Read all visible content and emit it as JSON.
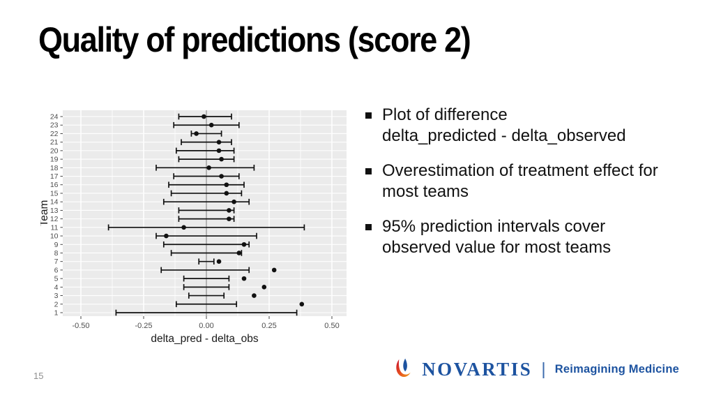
{
  "slide": {
    "title": "Quality of predictions (score 2)",
    "page_number": "15"
  },
  "bullets": [
    "Plot of difference\ndelta_predicted - delta_observed",
    "Overestimation of treatment effect for\nmost teams",
    "95% prediction intervals cover\nobserved value for most teams"
  ],
  "chart_data": {
    "type": "scatter",
    "subtype": "forest-interval-dot-plot",
    "title": "",
    "xlabel": "delta_pred - delta_obs",
    "ylabel": "Team",
    "xlim": [
      -0.57,
      0.56
    ],
    "x_ticks": [
      -0.5,
      -0.25,
      0.0,
      0.25,
      0.5
    ],
    "x_tick_labels": [
      "-0.50",
      "-0.25",
      "0.00",
      "0.25",
      "0.50"
    ],
    "x_minor_ticks": [
      -0.375,
      -0.125,
      0.125,
      0.375
    ],
    "zero_line": 0,
    "grid": "ggplot-gray-panel-white-grid",
    "legend": "none",
    "teams": [
      {
        "team": 1,
        "low": -0.36,
        "point": null,
        "high": 0.36
      },
      {
        "team": 2,
        "low": -0.12,
        "point": 0.38,
        "high": 0.12
      },
      {
        "team": 3,
        "low": -0.07,
        "point": 0.19,
        "high": 0.07
      },
      {
        "team": 4,
        "low": -0.09,
        "point": 0.23,
        "high": 0.09
      },
      {
        "team": 5,
        "low": -0.09,
        "point": 0.15,
        "high": 0.09
      },
      {
        "team": 6,
        "low": -0.18,
        "point": 0.27,
        "high": 0.17
      },
      {
        "team": 7,
        "low": -0.03,
        "point": 0.05,
        "high": 0.03
      },
      {
        "team": 8,
        "low": -0.14,
        "point": 0.13,
        "high": 0.14
      },
      {
        "team": 9,
        "low": -0.17,
        "point": 0.15,
        "high": 0.17
      },
      {
        "team": 10,
        "low": -0.2,
        "point": -0.16,
        "high": 0.2
      },
      {
        "team": 11,
        "low": -0.39,
        "point": -0.09,
        "high": 0.39
      },
      {
        "team": 12,
        "low": -0.11,
        "point": 0.09,
        "high": 0.11
      },
      {
        "team": 13,
        "low": -0.11,
        "point": 0.09,
        "high": 0.11
      },
      {
        "team": 14,
        "low": -0.17,
        "point": 0.11,
        "high": 0.17
      },
      {
        "team": 15,
        "low": -0.14,
        "point": 0.08,
        "high": 0.14
      },
      {
        "team": 16,
        "low": -0.15,
        "point": 0.08,
        "high": 0.15
      },
      {
        "team": 17,
        "low": -0.13,
        "point": 0.06,
        "high": 0.13
      },
      {
        "team": 18,
        "low": -0.2,
        "point": 0.01,
        "high": 0.19
      },
      {
        "team": 19,
        "low": -0.11,
        "point": 0.06,
        "high": 0.11
      },
      {
        "team": 20,
        "low": -0.12,
        "point": 0.05,
        "high": 0.11
      },
      {
        "team": 21,
        "low": -0.1,
        "point": 0.05,
        "high": 0.1
      },
      {
        "team": 22,
        "low": -0.06,
        "point": -0.04,
        "high": 0.06
      },
      {
        "team": 23,
        "low": -0.13,
        "point": 0.02,
        "high": 0.13
      },
      {
        "team": 24,
        "low": -0.11,
        "point": -0.01,
        "high": 0.1
      }
    ]
  },
  "footer": {
    "brand": "NOVARTIS",
    "separator": "|",
    "tagline": "Reimagining Medicine",
    "brand_color": "#1d53a0",
    "flame_red": "#c8102e",
    "flame_orange": "#e8531f",
    "flame_yellow": "#eda11e"
  },
  "colors": {
    "panel": "#ebebeb",
    "grid": "#ffffff",
    "zero_line": "#8a8a8a",
    "data": "#111111",
    "tick_text": "#4d4d4d",
    "axis_title": "#1a1a1a"
  }
}
